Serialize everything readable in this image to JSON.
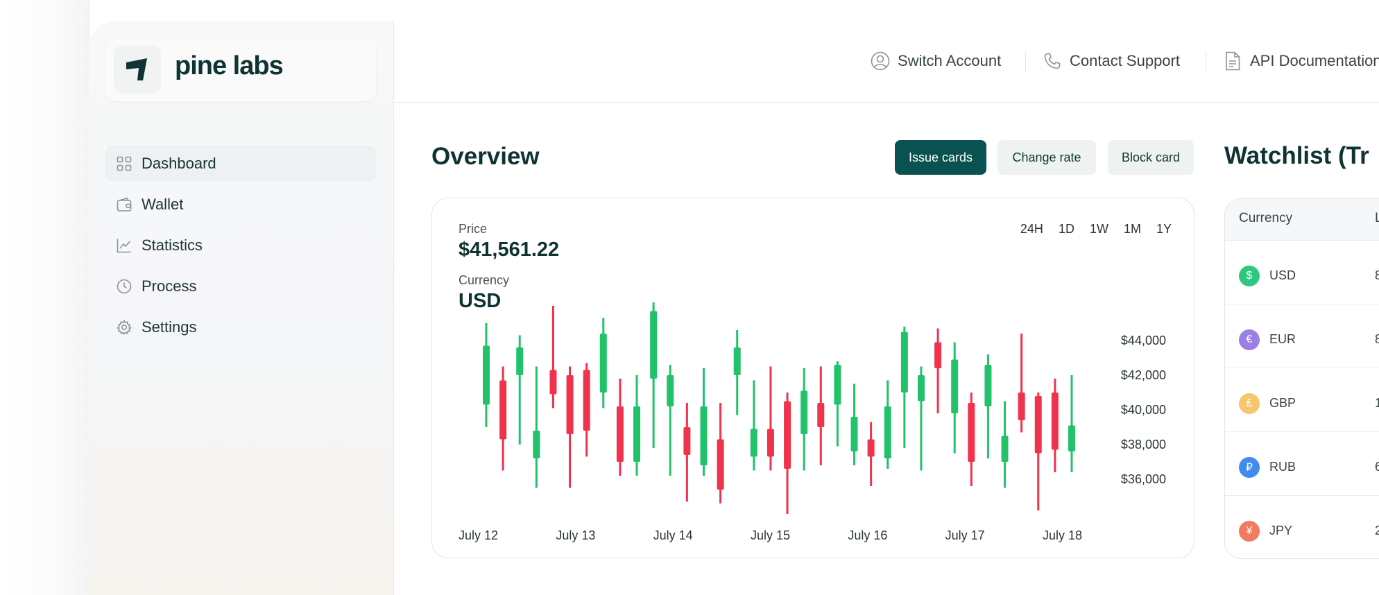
{
  "brand": {
    "name": "pine labs"
  },
  "topbar": {
    "links": [
      {
        "label": "Switch Account",
        "icon": "user-circle-icon"
      },
      {
        "label": "Contact Support",
        "icon": "phone-icon"
      },
      {
        "label": "API Documentation",
        "icon": "document-icon"
      }
    ]
  },
  "sidebar": {
    "items": [
      {
        "label": "Dashboard",
        "icon": "grid-icon",
        "active": true
      },
      {
        "label": "Wallet",
        "icon": "wallet-icon"
      },
      {
        "label": "Statistics",
        "icon": "trend-chart-icon"
      },
      {
        "label": "Process",
        "icon": "clock-icon"
      },
      {
        "label": "Settings",
        "icon": "gear-icon"
      }
    ]
  },
  "overview": {
    "title": "Overview",
    "buttons": {
      "issue": "Issue cards",
      "change": "Change rate",
      "block": "Block card"
    },
    "price_label": "Price",
    "price_value": "$41,561.22",
    "currency_label": "Currency",
    "currency_value": "USD",
    "ranges": [
      "24H",
      "1D",
      "1W",
      "1M",
      "1Y"
    ]
  },
  "chart_data": {
    "type": "candlestick",
    "x_labels": [
      "July 12",
      "July 13",
      "July 14",
      "July 15",
      "July 16",
      "July 17",
      "July 18"
    ],
    "y_ticks": [
      "$44,000",
      "$42,000",
      "$40,000",
      "$38,000",
      "$36,000"
    ],
    "ylim": [
      34200,
      45400
    ],
    "colors": {
      "up": "#22c26b",
      "down": "#f0334d"
    },
    "candles": [
      {
        "open": 40300,
        "close": 43700,
        "high": 45000,
        "low": 39000
      },
      {
        "open": 41700,
        "close": 38300,
        "high": 42500,
        "low": 36500
      },
      {
        "open": 42000,
        "close": 43600,
        "high": 44300,
        "low": 38000
      },
      {
        "open": 37200,
        "close": 38800,
        "high": 42500,
        "low": 35500
      },
      {
        "open": 42300,
        "close": 40900,
        "high": 46000,
        "low": 40100
      },
      {
        "open": 42000,
        "close": 38600,
        "high": 42500,
        "low": 35500
      },
      {
        "open": 42300,
        "close": 38800,
        "high": 42700,
        "low": 37300
      },
      {
        "open": 41000,
        "close": 44400,
        "high": 45300,
        "low": 40100
      },
      {
        "open": 40200,
        "close": 37000,
        "high": 41800,
        "low": 36200
      },
      {
        "open": 37000,
        "close": 40200,
        "high": 42000,
        "low": 36200
      },
      {
        "open": 41800,
        "close": 45700,
        "high": 46200,
        "low": 37800
      },
      {
        "open": 40200,
        "close": 42000,
        "high": 42600,
        "low": 36200
      },
      {
        "open": 39000,
        "close": 37400,
        "high": 40400,
        "low": 34700
      },
      {
        "open": 36800,
        "close": 40200,
        "high": 42400,
        "low": 36200
      },
      {
        "open": 38300,
        "close": 35400,
        "high": 40400,
        "low": 34600
      },
      {
        "open": 42000,
        "close": 43600,
        "high": 44600,
        "low": 39700
      },
      {
        "open": 37300,
        "close": 38900,
        "high": 41700,
        "low": 36500
      },
      {
        "open": 38900,
        "close": 37300,
        "high": 42500,
        "low": 36500
      },
      {
        "open": 40500,
        "close": 36600,
        "high": 41000,
        "low": 34000
      },
      {
        "open": 38600,
        "close": 41100,
        "high": 42400,
        "low": 36500
      },
      {
        "open": 40400,
        "close": 39000,
        "high": 42500,
        "low": 36800
      },
      {
        "open": 40300,
        "close": 42600,
        "high": 42800,
        "low": 37900
      },
      {
        "open": 37600,
        "close": 39600,
        "high": 41500,
        "low": 36800
      },
      {
        "open": 38300,
        "close": 37300,
        "high": 39300,
        "low": 35600
      },
      {
        "open": 37200,
        "close": 40200,
        "high": 41700,
        "low": 36600
      },
      {
        "open": 41000,
        "close": 44500,
        "high": 44800,
        "low": 37800
      },
      {
        "open": 40500,
        "close": 42000,
        "high": 42500,
        "low": 36500
      },
      {
        "open": 43900,
        "close": 42400,
        "high": 44700,
        "low": 39800
      },
      {
        "open": 39800,
        "close": 42900,
        "high": 43900,
        "low": 37500
      },
      {
        "open": 40400,
        "close": 37000,
        "high": 41000,
        "low": 35600
      },
      {
        "open": 40200,
        "close": 42600,
        "high": 43200,
        "low": 37200
      },
      {
        "open": 37000,
        "close": 38500,
        "high": 40500,
        "low": 35500
      },
      {
        "open": 41000,
        "close": 39400,
        "high": 44400,
        "low": 38700
      },
      {
        "open": 40800,
        "close": 37500,
        "high": 41000,
        "low": 34200
      },
      {
        "open": 41000,
        "close": 37700,
        "high": 41800,
        "low": 36400
      },
      {
        "open": 37600,
        "close": 39100,
        "high": 42000,
        "low": 36400
      }
    ]
  },
  "watchlist": {
    "title": "Watchlist (Tr",
    "headers": [
      "Currency",
      "L"
    ],
    "rows": [
      {
        "code": "USD",
        "symbol": "$",
        "color": "#2ec780",
        "value": "8"
      },
      {
        "code": "EUR",
        "symbol": "€",
        "color": "#9b7fe3",
        "value": "8"
      },
      {
        "code": "GBP",
        "symbol": "£",
        "color": "#f7c56b",
        "value": "1"
      },
      {
        "code": "RUB",
        "symbol": "₽",
        "color": "#3f8bef",
        "value": "6"
      },
      {
        "code": "JPY",
        "symbol": "¥",
        "color": "#f17a60",
        "value": "2"
      }
    ]
  }
}
